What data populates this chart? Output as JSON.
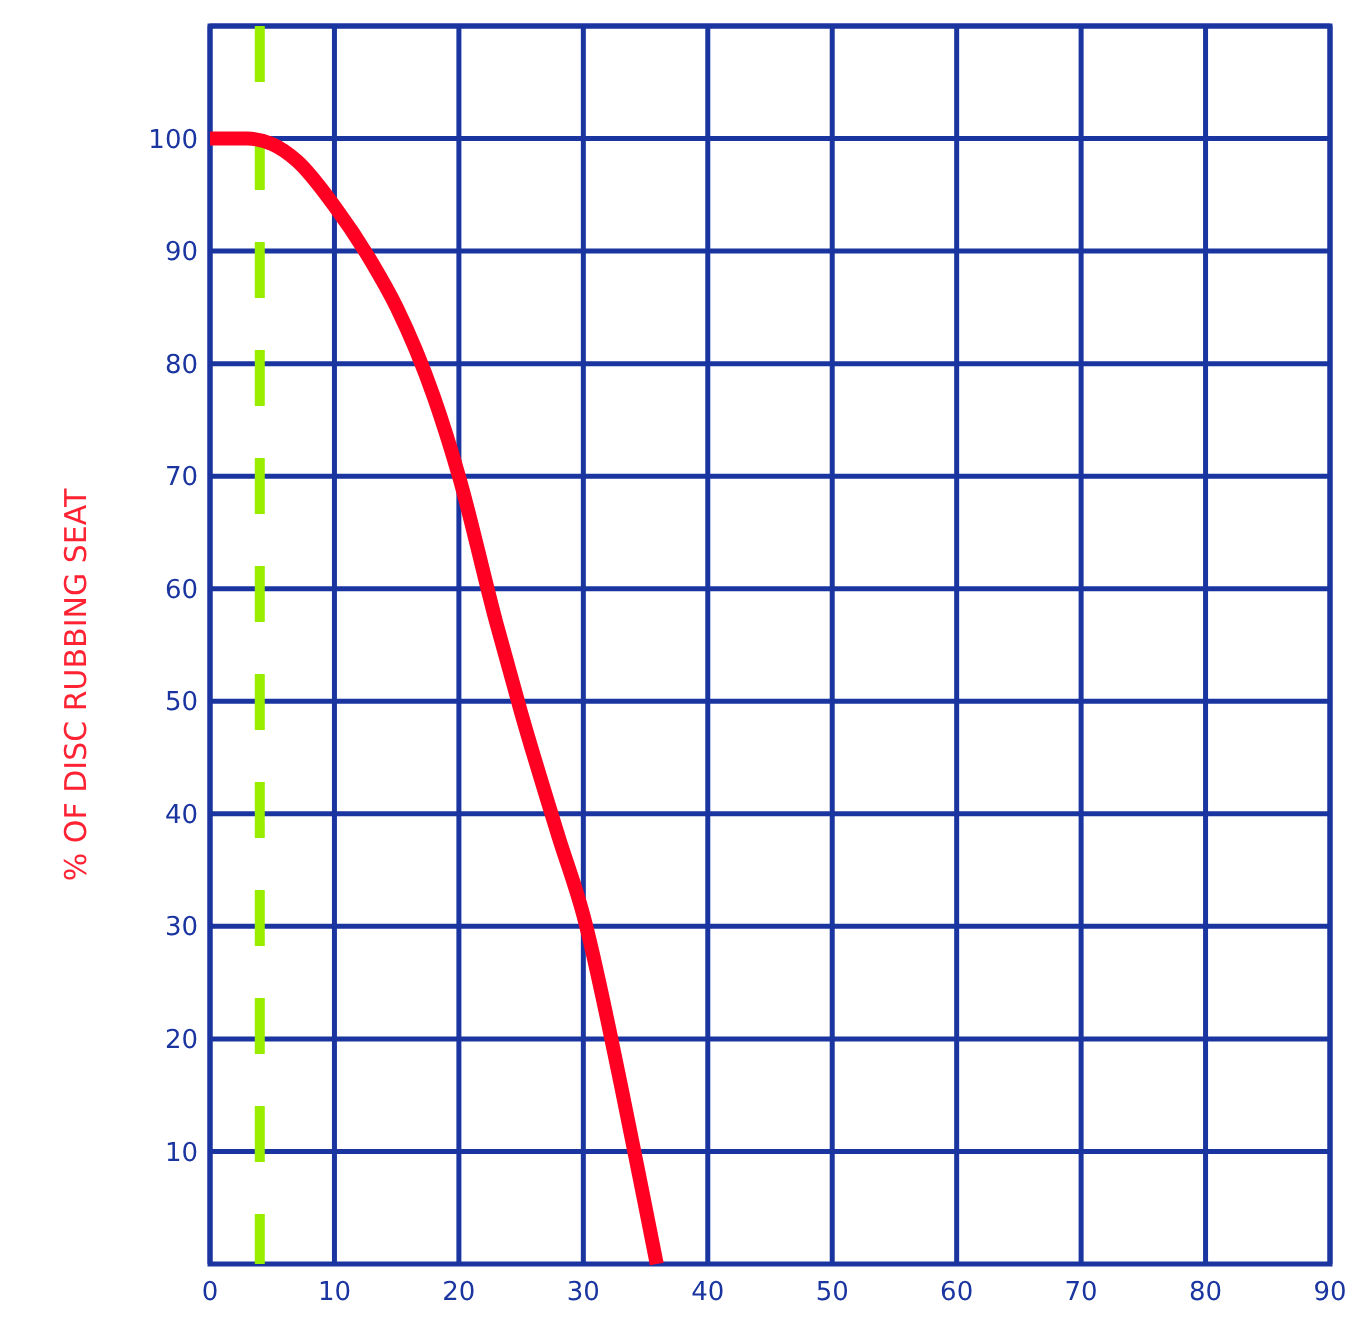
{
  "chart_data": {
    "type": "line",
    "ylabel": "% OF DISC RUBBING SEAT",
    "series": [
      {
        "color": "#ff0022",
        "x": [
          0,
          3,
          5,
          7,
          10,
          13,
          15,
          18,
          20,
          23,
          25,
          28,
          30,
          33,
          35,
          35.9
        ],
        "values": [
          100,
          100,
          99.5,
          98,
          94,
          89,
          85,
          77,
          70,
          57,
          49,
          38,
          31,
          16,
          5,
          0
        ]
      }
    ],
    "xlim": [
      0,
      90
    ],
    "xticks": [
      0,
      10,
      20,
      30,
      40,
      50,
      60,
      70,
      80,
      90
    ],
    "ylim": [
      0,
      110
    ],
    "yticks": [
      10,
      20,
      30,
      40,
      50,
      60,
      70,
      80,
      90,
      100,
      {
        "value": 110,
        "label": null
      }
    ],
    "grid": true,
    "marker": "none",
    "line_style": "solid",
    "ref_lines": [
      {
        "axis": "x",
        "value": 4,
        "color": "#99ee00",
        "line_style": "dashed"
      }
    ]
  }
}
